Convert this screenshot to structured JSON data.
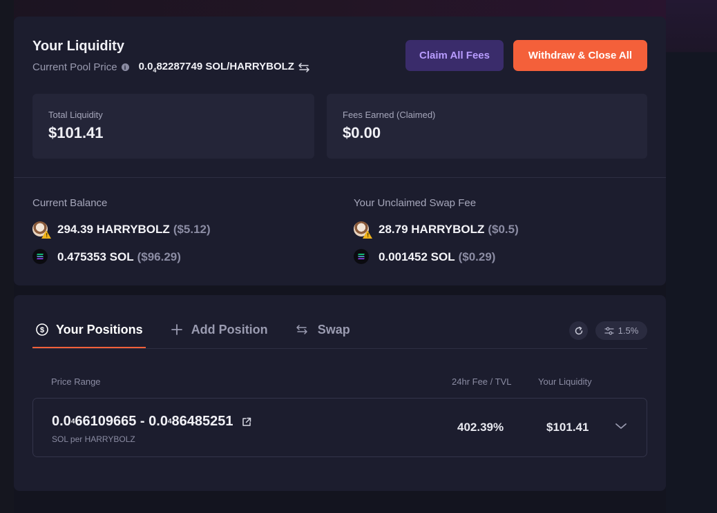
{
  "liquidity": {
    "title": "Your Liquidity",
    "pool_price_label": "Current Pool Price",
    "pool_price_prefix": "0.0",
    "pool_price_zeros": "4",
    "pool_price_rest": "82287749 SOL/HARRYBOLZ",
    "claim_button": "Claim All Fees",
    "withdraw_button": "Withdraw & Close All",
    "total_liquidity_label": "Total Liquidity",
    "total_liquidity_value": "$101.41",
    "fees_earned_label": "Fees Earned (Claimed)",
    "fees_earned_value": "$0.00"
  },
  "balance": {
    "current_label": "Current Balance",
    "unclaimed_label": "Your Unclaimed Swap Fee",
    "current": [
      {
        "amount": "294.39 HARRYBOLZ",
        "usd": "($5.12)",
        "icon": "harrybolz-token-icon"
      },
      {
        "amount": "0.475353 SOL",
        "usd": "($96.29)",
        "icon": "sol-token-icon"
      }
    ],
    "unclaimed": [
      {
        "amount": "28.79 HARRYBOLZ",
        "usd": "($0.5)",
        "icon": "harrybolz-token-icon"
      },
      {
        "amount": "0.001452 SOL",
        "usd": "($0.29)",
        "icon": "sol-token-icon"
      }
    ]
  },
  "positions": {
    "tabs": [
      {
        "label": "Your Positions",
        "icon": "dollar-circle-icon"
      },
      {
        "label": "Add Position",
        "icon": "plus-icon"
      },
      {
        "label": "Swap",
        "icon": "swap-arrows-icon"
      }
    ],
    "slippage": "1.5%",
    "columns": {
      "price_range": "Price Range",
      "fee_tvl": "24hr Fee / TVL",
      "liquidity": "Your Liquidity"
    },
    "rows": [
      {
        "range_a_prefix": "0.0",
        "range_a_zeros": "4",
        "range_a_rest": "66109665",
        "range_sep": " - ",
        "range_b_prefix": "0.0",
        "range_b_zeros": "4",
        "range_b_rest": "86485251",
        "unit": "SOL per HARRYBOLZ",
        "fee_tvl": "402.39%",
        "liquidity": "$101.41"
      }
    ]
  },
  "colors": {
    "accent": "#f4603a",
    "claim_bg": "#3a2c6b",
    "claim_text": "#b89cff",
    "card": "#1c1d2e"
  }
}
